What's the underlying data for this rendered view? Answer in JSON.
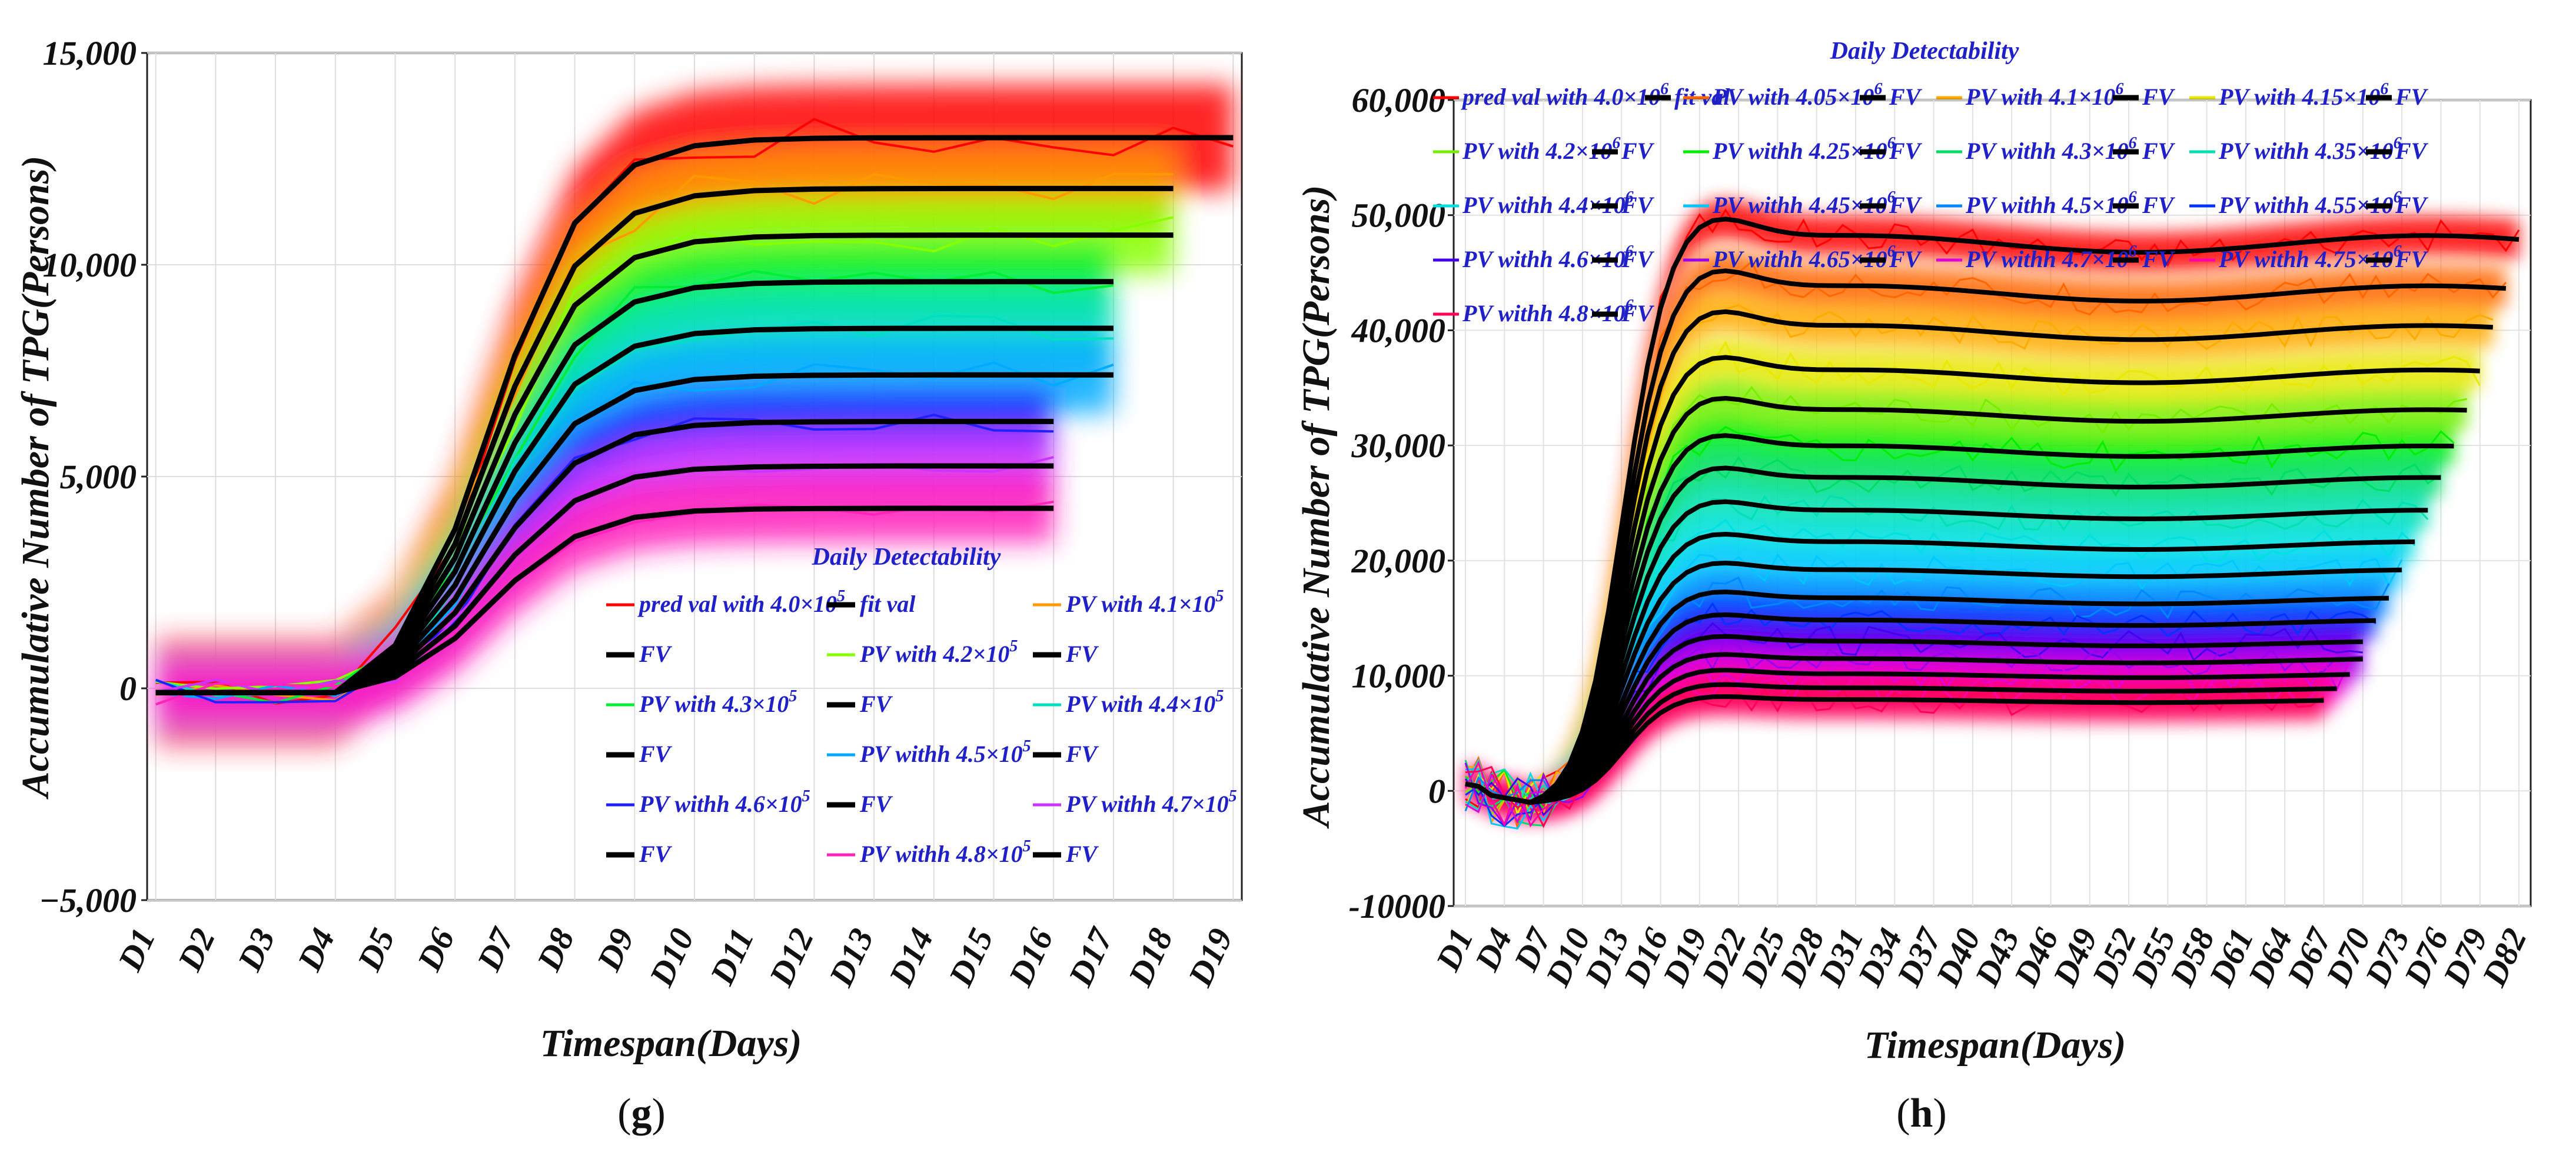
{
  "panels": {
    "g": {
      "panel_label": "g",
      "ylabel": "Accumulative Number of TPG(Persons)",
      "xlabel": "Timespan(Days)",
      "legend_title": "Daily Detectability",
      "y_tick_labels": [
        "15,000",
        "10,000",
        "5,000",
        "0",
        "−5,000"
      ],
      "x_tick_labels": [
        "D1",
        "D2",
        "D3",
        "D4",
        "D5",
        "D6",
        "D7",
        "D8",
        "D9",
        "D10",
        "D11",
        "D12",
        "D13",
        "D14",
        "D15",
        "D16",
        "D17",
        "D18",
        "D19"
      ],
      "legend": [
        {
          "label": "pred val with 4.0×10",
          "exp": "5",
          "color": "#ff0000"
        },
        {
          "label": "fit val",
          "exp": "",
          "color": "#000000"
        },
        {
          "label": "PV with 4.1×10",
          "exp": "5",
          "color": "#ff9900"
        },
        {
          "label": "FV",
          "exp": "",
          "color": "#000000"
        },
        {
          "label": "PV with 4.2×10",
          "exp": "5",
          "color": "#88ff00"
        },
        {
          "label": "FV",
          "exp": "",
          "color": "#000000"
        },
        {
          "label": "PV with 4.3×10",
          "exp": "5",
          "color": "#00ee33"
        },
        {
          "label": "FV",
          "exp": "",
          "color": "#000000"
        },
        {
          "label": "PV with 4.4×10",
          "exp": "5",
          "color": "#00e0c0"
        },
        {
          "label": "FV",
          "exp": "",
          "color": "#000000"
        },
        {
          "label": "PV withh 4.5×10",
          "exp": "5",
          "color": "#00aaff"
        },
        {
          "label": "FV",
          "exp": "",
          "color": "#000000"
        },
        {
          "label": "PV withh 4.6×10",
          "exp": "5",
          "color": "#2020ff"
        },
        {
          "label": "FV",
          "exp": "",
          "color": "#000000"
        },
        {
          "label": "PV withh 4.7×10",
          "exp": "5",
          "color": "#cc33ff"
        },
        {
          "label": "FV",
          "exp": "",
          "color": "#000000"
        },
        {
          "label": "PV withh 4.8×10",
          "exp": "5",
          "color": "#ff22bb"
        },
        {
          "label": "FV",
          "exp": "",
          "color": "#000000"
        }
      ]
    },
    "h": {
      "panel_label": "h",
      "ylabel": "Accumulative Number of TPG(Persons)",
      "xlabel": "Timespan(Days)",
      "legend_title": "Daily Detectability",
      "y_tick_labels": [
        "60,000",
        "50,000",
        "40,000",
        "30,000",
        "20,000",
        "10,000",
        "0",
        "-10000"
      ],
      "x_tick_labels": [
        "D1",
        "D4",
        "D7",
        "D10",
        "D13",
        "D16",
        "D19",
        "D22",
        "D25",
        "D28",
        "D31",
        "D34",
        "D37",
        "D40",
        "D43",
        "D46",
        "D49",
        "D52",
        "D55",
        "D58",
        "D61",
        "D64",
        "D67",
        "D70",
        "D73",
        "D76",
        "D79",
        "D82"
      ],
      "legend": [
        {
          "label": "pred val with 4.0×10",
          "exp": "6",
          "color": "#ff0000"
        },
        {
          "label": "fit val",
          "exp": "",
          "color": "#000000"
        },
        {
          "label": "PV with 4.05×10",
          "exp": "6",
          "color": "#ff6600"
        },
        {
          "label": "FV",
          "exp": "",
          "color": "#000000"
        },
        {
          "label": "PV with 4.1×10",
          "exp": "6",
          "color": "#ffaa00"
        },
        {
          "label": "FV",
          "exp": "",
          "color": "#000000"
        },
        {
          "label": "PV with 4.15×10",
          "exp": "6",
          "color": "#e8e800"
        },
        {
          "label": "FV",
          "exp": "",
          "color": "#000000"
        },
        {
          "label": "PV with 4.2×10",
          "exp": "6",
          "color": "#77ee00"
        },
        {
          "label": "FV",
          "exp": "",
          "color": "#000000"
        },
        {
          "label": "PV withh 4.25×10",
          "exp": "6",
          "color": "#00ee00"
        },
        {
          "label": "FV",
          "exp": "",
          "color": "#000000"
        },
        {
          "label": "PV withh 4.3×10",
          "exp": "6",
          "color": "#00dd66"
        },
        {
          "label": "FV",
          "exp": "",
          "color": "#000000"
        },
        {
          "label": "PV withh 4.35×10",
          "exp": "6",
          "color": "#00e0b0"
        },
        {
          "label": "FV",
          "exp": "",
          "color": "#000000"
        },
        {
          "label": "PV withh 4.4×10",
          "exp": "6",
          "color": "#00e0e0"
        },
        {
          "label": "FV",
          "exp": "",
          "color": "#000000"
        },
        {
          "label": "PV withh 4.45×10",
          "exp": "6",
          "color": "#00c8ff"
        },
        {
          "label": "FV",
          "exp": "",
          "color": "#000000"
        },
        {
          "label": "PV withh 4.5×10",
          "exp": "6",
          "color": "#0088ff"
        },
        {
          "label": "FV",
          "exp": "",
          "color": "#000000"
        },
        {
          "label": "PV withh 4.55×10",
          "exp": "6",
          "color": "#0033ff"
        },
        {
          "label": "FV",
          "exp": "",
          "color": "#000000"
        },
        {
          "label": "PV withh 4.6×10",
          "exp": "6",
          "color": "#4400ee"
        },
        {
          "label": "FV",
          "exp": "",
          "color": "#000000"
        },
        {
          "label": "PV withh 4.65×10",
          "exp": "6",
          "color": "#9900ee"
        },
        {
          "label": "FV",
          "exp": "",
          "color": "#000000"
        },
        {
          "label": "PV withh 4.7×10",
          "exp": "6",
          "color": "#dd00dd"
        },
        {
          "label": "FV",
          "exp": "",
          "color": "#000000"
        },
        {
          "label": "PV withh 4.75×10",
          "exp": "6",
          "color": "#ff00aa"
        },
        {
          "label": "FV",
          "exp": "",
          "color": "#000000"
        },
        {
          "label": "PV withh 4.8×10",
          "exp": "6",
          "color": "#ff0055"
        },
        {
          "label": "FV",
          "exp": "",
          "color": "#000000"
        }
      ]
    }
  },
  "chart_data": [
    {
      "type": "line",
      "panel": "g",
      "title": "",
      "xlabel": "Timespan(Days)",
      "ylabel": "Accumulative Number of TPG(Persons)",
      "ylim": [
        -5000,
        15000
      ],
      "grid": true,
      "legend_placement": "lower-right",
      "categories": [
        "D1",
        "D2",
        "D3",
        "D4",
        "D5",
        "D6",
        "D7",
        "D8",
        "D9",
        "D10",
        "D11",
        "D12",
        "D13",
        "D14",
        "D15",
        "D16",
        "D17",
        "D18",
        "D19"
      ],
      "series": [
        {
          "name": "pred val with 4.0×10^5",
          "color": "#ff0000",
          "plateau": 13000,
          "end_index": 18
        },
        {
          "name": "PV with 4.1×10^5",
          "color": "#ff9900",
          "plateau": 11800,
          "end_index": 17
        },
        {
          "name": "PV with 4.2×10^5",
          "color": "#88ff00",
          "plateau": 10700,
          "end_index": 17
        },
        {
          "name": "PV with 4.3×10^5",
          "color": "#00ee33",
          "plateau": 9600,
          "end_index": 16
        },
        {
          "name": "PV with 4.4×10^5",
          "color": "#00e0c0",
          "plateau": 8500,
          "end_index": 16
        },
        {
          "name": "PV withh 4.5×10^5",
          "color": "#00aaff",
          "plateau": 7400,
          "end_index": 16
        },
        {
          "name": "PV withh 4.6×10^5",
          "color": "#2020ff",
          "plateau": 6300,
          "end_index": 15
        },
        {
          "name": "PV withh 4.7×10^5",
          "color": "#cc33ff",
          "plateau": 5250,
          "end_index": 15
        },
        {
          "name": "PV withh 4.8×10^5",
          "color": "#ff22bb",
          "plateau": 4250,
          "end_index": 15
        }
      ],
      "curve_shape": {
        "onset_index": 3,
        "midpoint_index": 5.6,
        "steepness": 1.25,
        "pre_onset_value": -100
      }
    },
    {
      "type": "line",
      "panel": "h",
      "title": "Daily Detectability",
      "xlabel": "Timespan(Days)",
      "ylabel": "Accumulative Number of TPG(Persons)",
      "ylim": [
        -10000,
        60000
      ],
      "grid": true,
      "legend_placement": "top-left",
      "categories": [
        "D1",
        "D4",
        "D7",
        "D10",
        "D13",
        "D16",
        "D19",
        "D22",
        "D25",
        "D28",
        "D31",
        "D34",
        "D37",
        "D40",
        "D43",
        "D46",
        "D49",
        "D52",
        "D55",
        "D58",
        "D61",
        "D64",
        "D67",
        "D70",
        "D73",
        "D76",
        "D79",
        "D82"
      ],
      "x_range_days": [
        1,
        82
      ],
      "series": [
        {
          "name": "pred val with 4.0×10^6",
          "color": "#ff0000",
          "plateau": 47500,
          "end_day": 82
        },
        {
          "name": "PV with 4.05×10^6",
          "color": "#ff6600",
          "plateau": 43200,
          "end_day": 81
        },
        {
          "name": "PV with 4.1×10^6",
          "color": "#ffaa00",
          "plateau": 39800,
          "end_day": 80
        },
        {
          "name": "PV with 4.15×10^6",
          "color": "#e8e800",
          "plateau": 36000,
          "end_day": 79
        },
        {
          "name": "PV with 4.2×10^6",
          "color": "#77ee00",
          "plateau": 32600,
          "end_day": 78
        },
        {
          "name": "PV withh 4.25×10^6",
          "color": "#00ee00",
          "plateau": 29500,
          "end_day": 77
        },
        {
          "name": "PV withh 4.3×10^6",
          "color": "#00dd66",
          "plateau": 26800,
          "end_day": 76
        },
        {
          "name": "PV withh 4.35×10^6",
          "color": "#00e0b0",
          "plateau": 24000,
          "end_day": 75
        },
        {
          "name": "PV withh 4.4×10^6",
          "color": "#00e0e0",
          "plateau": 21300,
          "end_day": 74
        },
        {
          "name": "PV withh 4.45×10^6",
          "color": "#00c8ff",
          "plateau": 18900,
          "end_day": 73
        },
        {
          "name": "PV withh 4.5×10^6",
          "color": "#0088ff",
          "plateau": 16500,
          "end_day": 72
        },
        {
          "name": "PV withh 4.55×10^6",
          "color": "#0033ff",
          "plateau": 14600,
          "end_day": 71
        },
        {
          "name": "PV withh 4.6×10^6",
          "color": "#4400ee",
          "plateau": 12800,
          "end_day": 70
        },
        {
          "name": "PV withh 4.65×10^6",
          "color": "#9900ee",
          "plateau": 11300,
          "end_day": 70
        },
        {
          "name": "PV withh 4.7×10^6",
          "color": "#dd00dd",
          "plateau": 10000,
          "end_day": 69
        },
        {
          "name": "PV withh 4.75×10^6",
          "color": "#ff00aa",
          "plateau": 8800,
          "end_day": 68
        },
        {
          "name": "PV withh 4.8×10^6",
          "color": "#ff0055",
          "plateau": 7800,
          "end_day": 67
        }
      ],
      "curve_shape": {
        "dip_day": 6,
        "dip_value": -1000,
        "midpoint_day": 13,
        "steepness": 0.6,
        "overshoot": 0.06,
        "peak_day": 19
      }
    }
  ]
}
